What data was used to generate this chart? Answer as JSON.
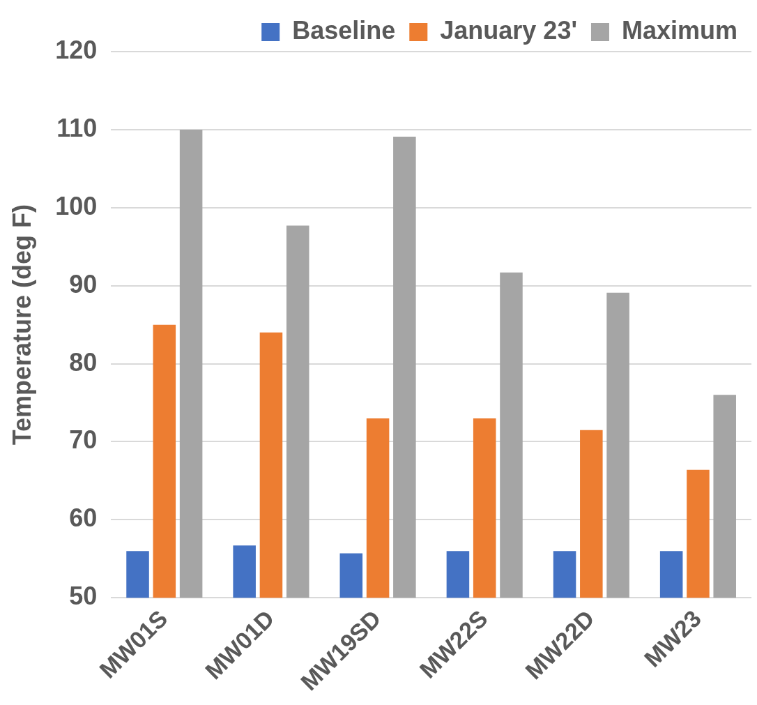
{
  "chart_data": {
    "type": "bar",
    "ylabel": "Temperature (deg F)",
    "categories": [
      "MW01S",
      "MW01D",
      "MW19SD",
      "MW22S",
      "MW22D",
      "MW23"
    ],
    "series": [
      {
        "name": "Baseline",
        "color": "#4472c4",
        "values": [
          56,
          56.7,
          55.7,
          56,
          56,
          56
        ]
      },
      {
        "name": "January 23'",
        "color": "#ed7d31",
        "values": [
          85,
          84,
          73,
          73,
          71.5,
          66.4
        ]
      },
      {
        "name": "Maximum",
        "color": "#a5a5a5",
        "values": [
          110,
          97.7,
          109.1,
          91.7,
          89.1,
          76
        ]
      }
    ],
    "ylim": [
      50,
      120
    ],
    "yticks": [
      50,
      60,
      70,
      80,
      90,
      100,
      110,
      120
    ],
    "grid": "y",
    "legend": "top"
  }
}
